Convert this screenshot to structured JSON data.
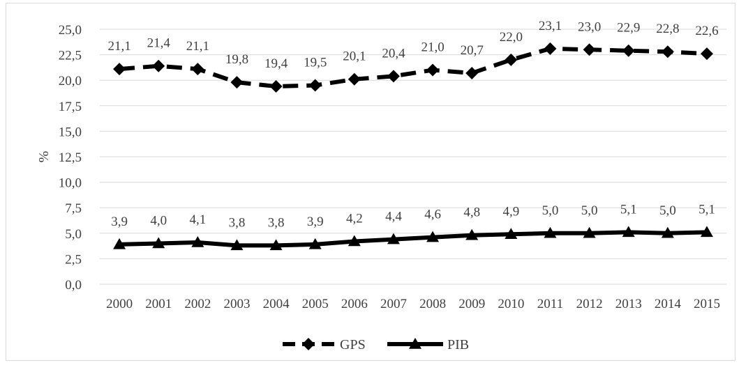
{
  "chart_data": {
    "type": "line",
    "title": "",
    "xlabel": "",
    "ylabel": "%",
    "ylim": [
      0,
      25
    ],
    "yticks": [
      "0,0",
      "2,5",
      "5,0",
      "7,5",
      "10,0",
      "12,5",
      "15,0",
      "17,5",
      "20,0",
      "22,5",
      "25,0"
    ],
    "categories": [
      "2000",
      "2001",
      "2002",
      "2003",
      "2004",
      "2005",
      "2006",
      "2007",
      "2008",
      "2009",
      "2010",
      "2011",
      "2012",
      "2013",
      "2014",
      "2015"
    ],
    "grid": true,
    "legend_position": "bottom",
    "series": [
      {
        "name": "GPS",
        "marker": "diamond",
        "line_style": "dashed",
        "color": "#000000",
        "values": [
          21.1,
          21.4,
          21.1,
          19.8,
          19.4,
          19.5,
          20.1,
          20.4,
          21.0,
          20.7,
          22.0,
          23.1,
          23.0,
          22.9,
          22.8,
          22.6
        ],
        "labels": [
          "21,1",
          "21,4",
          "21,1",
          "19,8",
          "19,4",
          "19,5",
          "20,1",
          "20,4",
          "21,0",
          "20,7",
          "22,0",
          "23,1",
          "23,0",
          "22,9",
          "22,8",
          "22,6"
        ]
      },
      {
        "name": "PIB",
        "marker": "triangle",
        "line_style": "solid",
        "color": "#000000",
        "values": [
          3.9,
          4.0,
          4.1,
          3.8,
          3.8,
          3.9,
          4.2,
          4.4,
          4.6,
          4.8,
          4.9,
          5.0,
          5.0,
          5.1,
          5.0,
          5.1
        ],
        "labels": [
          "3,9",
          "4,0",
          "4,1",
          "3,8",
          "3,8",
          "3,9",
          "4,2",
          "4,4",
          "4,6",
          "4,8",
          "4,9",
          "5,0",
          "5,0",
          "5,1",
          "5,0",
          "5,1"
        ]
      }
    ]
  }
}
